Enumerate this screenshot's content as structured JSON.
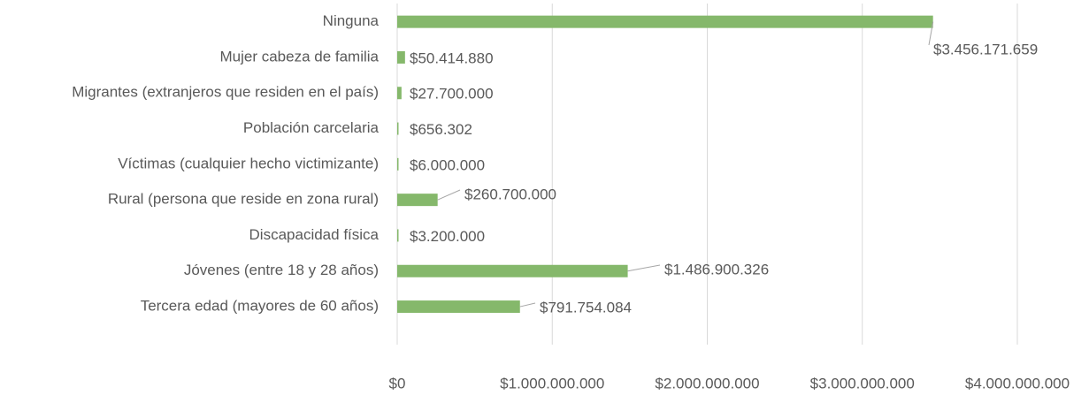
{
  "chart_data": {
    "type": "barh",
    "categories": [
      "Ninguna",
      "Mujer cabeza de familia",
      "Migrantes (extranjeros que residen en el país)",
      "Población carcelaria",
      "Víctimas (cualquier hecho victimizante)",
      "Rural (persona que reside en zona rural)",
      "Discapacidad física",
      "Jóvenes (entre 18 y 28 años)",
      "Tercera edad (mayores de 60 años)"
    ],
    "values": [
      3456171659,
      50414880,
      27700000,
      656302,
      6000000,
      260700000,
      3200000,
      1486900326,
      791754084
    ],
    "value_labels": [
      "$3.456.171.659",
      "$50.414.880",
      "$27.700.000",
      "$656.302",
      "$6.000.000",
      "$260.700.000",
      "$3.200.000",
      "$1.486.900.326",
      "$791.754.084"
    ],
    "color": "#85b86b",
    "xlim": [
      0,
      4000000000
    ],
    "xticks": [
      {
        "value": 0,
        "label": "$0"
      },
      {
        "value": 1000000000,
        "label": "$1.000.000.000"
      },
      {
        "value": 2000000000,
        "label": "$2.000.000.000"
      },
      {
        "value": 3000000000,
        "label": "$3.000.000.000"
      },
      {
        "value": 4000000000,
        "label": "$4.000.000.000"
      }
    ],
    "grid": true
  }
}
